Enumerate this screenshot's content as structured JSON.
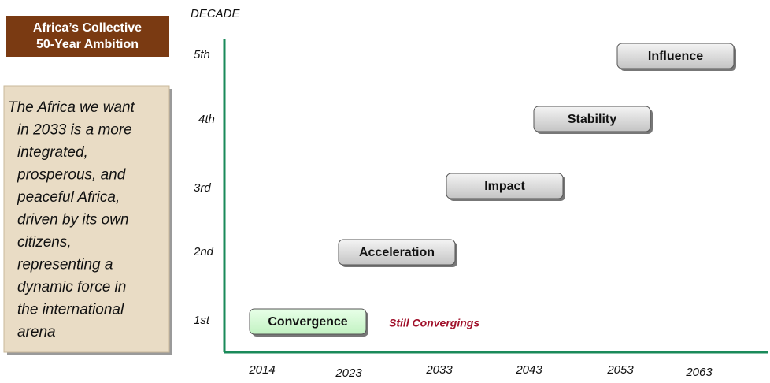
{
  "header": {
    "title_lines": [
      "Africa’s Collective",
      "50-Year Ambition"
    ]
  },
  "vision": {
    "lines": [
      "The Africa we want",
      "in 2033 is a more",
      "integrated,",
      "prosperous, and",
      "peaceful Africa,",
      "driven by its own",
      "citizens,",
      "representing a",
      "dynamic force in",
      "the international",
      "arena"
    ]
  },
  "axis": {
    "y_label": "DECADE",
    "decades": [
      "1st",
      "2nd",
      "3rd",
      "4th",
      "5th"
    ],
    "years": [
      "2014",
      "2023",
      "2033",
      "2043",
      "2053",
      "2063"
    ]
  },
  "phases": [
    {
      "label": "Convergence"
    },
    {
      "label": "Acceleration"
    },
    {
      "label": "Impact"
    },
    {
      "label": "Stability"
    },
    {
      "label": "Influence"
    }
  ],
  "annotation": "Still Convergings"
}
